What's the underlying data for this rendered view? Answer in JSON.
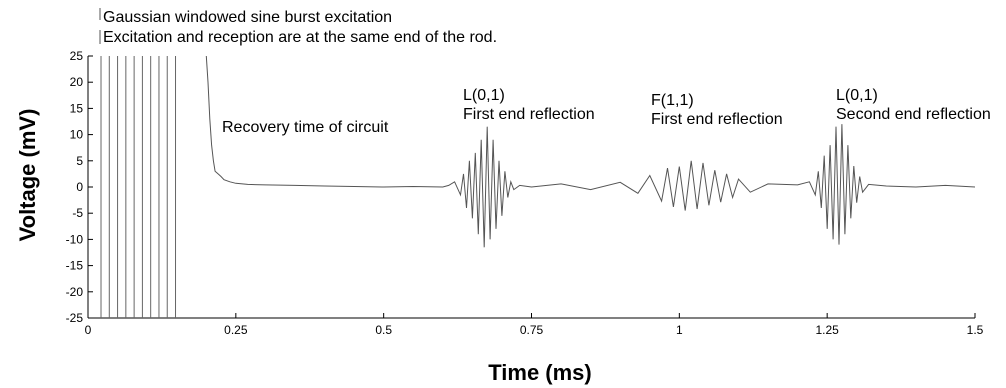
{
  "chart_data": {
    "type": "line",
    "title": "",
    "xlabel": "Time (ms)",
    "ylabel": "Voltage (mV)",
    "xlim": [
      0,
      1.5
    ],
    "ylim": [
      -25,
      25
    ],
    "x_ticks": [
      0,
      0.25,
      0.5,
      0.75,
      1,
      1.25,
      1.5
    ],
    "x_tick_labels": [
      "0",
      "0.25",
      "0.5",
      "0.75",
      "1",
      "1.25",
      "1.5"
    ],
    "y_ticks": [
      25,
      20,
      15,
      10,
      5,
      0,
      -5,
      -10,
      -15,
      -20,
      -25
    ],
    "y_tick_labels": [
      "25",
      "20",
      "15",
      "10",
      "5",
      "0",
      "-5",
      "-10",
      "-15",
      "-20",
      "-25"
    ],
    "grid": false,
    "line_color": "#555555",
    "excitation_lines_x": [
      0.022,
      0.036,
      0.05,
      0.064,
      0.078,
      0.092,
      0.106,
      0.12,
      0.134,
      0.148
    ],
    "series": [
      {
        "x": [
          0.2,
          0.203,
          0.206,
          0.209,
          0.212,
          0.215,
          0.22,
          0.225,
          0.23,
          0.24,
          0.25,
          0.27,
          0.3,
          0.35,
          0.4,
          0.45,
          0.5,
          0.55,
          0.6,
          0.61,
          0.62,
          0.63,
          0.635,
          0.64,
          0.645,
          0.65,
          0.655,
          0.66,
          0.665,
          0.67,
          0.675,
          0.68,
          0.685,
          0.69,
          0.695,
          0.7,
          0.705,
          0.71,
          0.715,
          0.72,
          0.73,
          0.75,
          0.8,
          0.85,
          0.9,
          0.93,
          0.95,
          0.97,
          0.98,
          0.99,
          1.0,
          1.01,
          1.02,
          1.03,
          1.04,
          1.05,
          1.06,
          1.07,
          1.08,
          1.09,
          1.1,
          1.12,
          1.15,
          1.2,
          1.22,
          1.23,
          1.235,
          1.24,
          1.245,
          1.25,
          1.255,
          1.26,
          1.265,
          1.27,
          1.275,
          1.28,
          1.285,
          1.29,
          1.295,
          1.3,
          1.305,
          1.31,
          1.32,
          1.35,
          1.4,
          1.45,
          1.5
        ],
        "y": [
          25,
          20,
          13,
          8,
          5,
          3,
          2.5,
          2,
          1.4,
          1,
          0.7,
          0.5,
          0.4,
          0.3,
          0.2,
          0.1,
          0,
          0.1,
          0,
          0.3,
          1,
          -1.5,
          2.5,
          -4,
          5,
          -6,
          6.5,
          -9,
          9,
          -11.5,
          11.5,
          -10,
          9,
          -8,
          5,
          -5.5,
          3,
          -2,
          1,
          -0.5,
          0.3,
          0,
          0.6,
          -0.5,
          0.9,
          -1.2,
          2.2,
          -2.7,
          3.6,
          -3.8,
          3.9,
          -4.5,
          5,
          -4.2,
          4.6,
          -3.5,
          3.2,
          -2.9,
          2.5,
          -2,
          1.5,
          -1,
          0.6,
          0.4,
          1,
          -1.5,
          3,
          -4,
          6,
          -8,
          8,
          -10,
          11.5,
          -11,
          12,
          -9,
          8,
          -6,
          4,
          -3,
          2,
          -1,
          0.5,
          0.2,
          0,
          0.3,
          0
        ]
      }
    ],
    "annotations": [
      {
        "lines": [
          "Gaussian windowed sine burst excitation",
          "Excitation and reception are at the same end of the rod."
        ]
      },
      {
        "lines": [
          "Recovery time of circuit"
        ]
      },
      {
        "lines": [
          "L(0,1)",
          "First end reflection"
        ]
      },
      {
        "lines": [
          "F(1,1)",
          "First end reflection"
        ]
      },
      {
        "lines": [
          "L(0,1)",
          "Second end reflection"
        ]
      }
    ]
  }
}
